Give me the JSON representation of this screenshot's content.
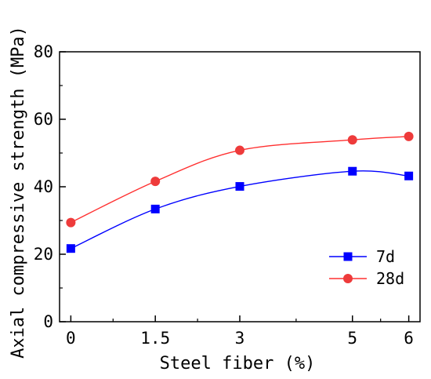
{
  "chart_data": {
    "type": "line",
    "title": "",
    "xlabel": "Steel fiber (%)",
    "ylabel": "Axial compressive strength (MPa)",
    "x": [
      0,
      1.5,
      3,
      5,
      6
    ],
    "x_tick_labels": [
      "0",
      "1.5",
      "3",
      "5",
      "6"
    ],
    "xlim": [
      -0.2,
      6.2
    ],
    "ylim": [
      0,
      80
    ],
    "y_ticks": [
      0,
      20,
      40,
      60,
      80
    ],
    "y_tick_labels": [
      "0",
      "20",
      "40",
      "60",
      "80"
    ],
    "grid": false,
    "legend_position": "bottom-right",
    "series": [
      {
        "name": "7d",
        "values": [
          21.7,
          33.4,
          40.1,
          44.6,
          43.2
        ],
        "line_color": "#0000ff",
        "marker": "square",
        "marker_color": "#0000ff"
      },
      {
        "name": "28d",
        "values": [
          29.4,
          41.6,
          50.8,
          53.9,
          54.9
        ],
        "line_color": "#ff3030",
        "marker": "circle",
        "marker_color": "#ee3b3b"
      }
    ]
  }
}
